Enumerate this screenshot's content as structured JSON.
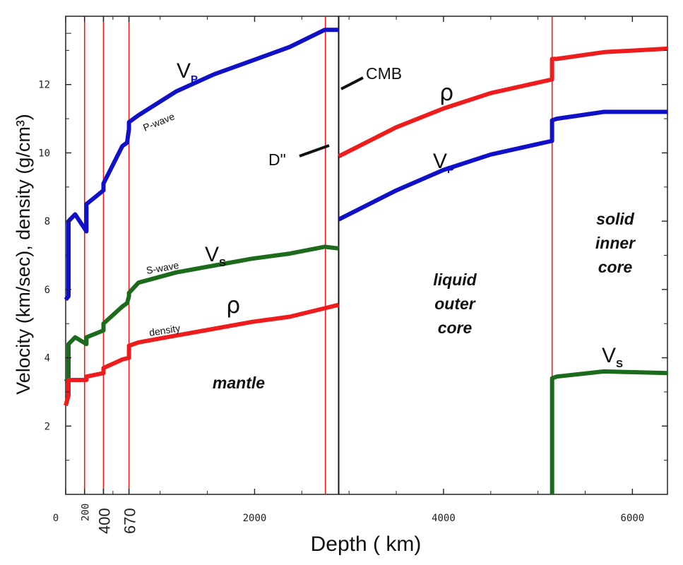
{
  "chart_data": {
    "type": "line",
    "xlabel": "Depth ( km)",
    "ylabel": "Velocity (km/sec), density (g/cm³)",
    "xlim": [
      0,
      6371
    ],
    "ylim": [
      0,
      14
    ],
    "x_ticks": [
      {
        "value": 0,
        "label": "0"
      },
      {
        "value": 200,
        "label": "200"
      },
      {
        "value": 400,
        "label": "400"
      },
      {
        "value": 670,
        "label": "670"
      },
      {
        "value": 2000,
        "label": "2000"
      },
      {
        "value": 4000,
        "label": "4000"
      },
      {
        "value": 6000,
        "label": "6000"
      }
    ],
    "y_ticks": [
      2,
      4,
      6,
      8,
      10,
      12
    ],
    "boundaries": [
      200,
      400,
      670,
      2750,
      5150
    ],
    "cmb_depth": 2890,
    "series": [
      {
        "key": "vp_mantle",
        "color": "#1010c8",
        "x": [
          0,
          30,
          30,
          100,
          220,
          220,
          400,
          400,
          600,
          650,
          670,
          670,
          771,
          1171,
          1571,
          1971,
          2371,
          2741,
          2891
        ],
        "y": [
          5.7,
          5.8,
          8.0,
          8.2,
          7.7,
          8.5,
          8.9,
          9.1,
          10.2,
          10.3,
          10.7,
          10.9,
          11.1,
          11.8,
          12.3,
          12.7,
          13.1,
          13.6,
          13.6
        ]
      },
      {
        "key": "vp_core",
        "color": "#1010c8",
        "x": [
          2891,
          3500,
          4000,
          4500,
          5149,
          5149,
          5200,
          5700,
          6371
        ],
        "y": [
          8.05,
          8.9,
          9.5,
          9.95,
          10.35,
          10.95,
          11.0,
          11.2,
          11.2
        ]
      },
      {
        "key": "vs_mantle",
        "color": "#1c6b1c",
        "x": [
          0,
          30,
          30,
          100,
          220,
          220,
          400,
          400,
          600,
          650,
          670,
          670,
          771,
          1171,
          1571,
          1971,
          2371,
          2741,
          2891
        ],
        "y": [
          3.3,
          3.4,
          4.4,
          4.6,
          4.4,
          4.6,
          4.8,
          5.0,
          5.5,
          5.6,
          5.8,
          5.9,
          6.2,
          6.5,
          6.7,
          6.9,
          7.05,
          7.25,
          7.2
        ]
      },
      {
        "key": "vs_inner",
        "color": "#1c6b1c",
        "x": [
          5150,
          5150,
          5200,
          5700,
          6371
        ],
        "y": [
          0,
          3.4,
          3.45,
          3.6,
          3.55
        ]
      },
      {
        "key": "rho_mantle",
        "color": "#ee1c1c",
        "x": [
          0,
          30,
          30,
          100,
          220,
          220,
          400,
          400,
          600,
          670,
          670,
          771,
          1171,
          1571,
          1971,
          2371,
          2741,
          2891
        ],
        "y": [
          2.6,
          2.9,
          3.35,
          3.35,
          3.35,
          3.45,
          3.55,
          3.7,
          3.95,
          4.0,
          4.35,
          4.45,
          4.65,
          4.85,
          5.05,
          5.2,
          5.45,
          5.55
        ]
      },
      {
        "key": "rho_core",
        "color": "#ee1c1c",
        "x": [
          2891,
          3500,
          4000,
          4500,
          5149,
          5149,
          5200,
          5700,
          6371
        ],
        "y": [
          9.9,
          10.75,
          11.3,
          11.75,
          12.15,
          12.75,
          12.75,
          12.95,
          13.05
        ]
      }
    ],
    "annotations": {
      "vp_mantle_label": "V",
      "vp_core_label": "V",
      "vp_sub": "P",
      "vs_mantle_label": "V",
      "vs_inner_label": "V",
      "vs_sub": "S",
      "rho_mantle_label": "ρ",
      "rho_core_label": "ρ",
      "p_wave": "P-wave",
      "s_wave": "S-wave",
      "density": "density",
      "cmb": "CMB",
      "d_double_prime": "D\"",
      "mantle": "mantle",
      "outer_core": [
        "liquid",
        "outer",
        "core"
      ],
      "inner_core": [
        "solid",
        "inner",
        "core"
      ]
    }
  }
}
